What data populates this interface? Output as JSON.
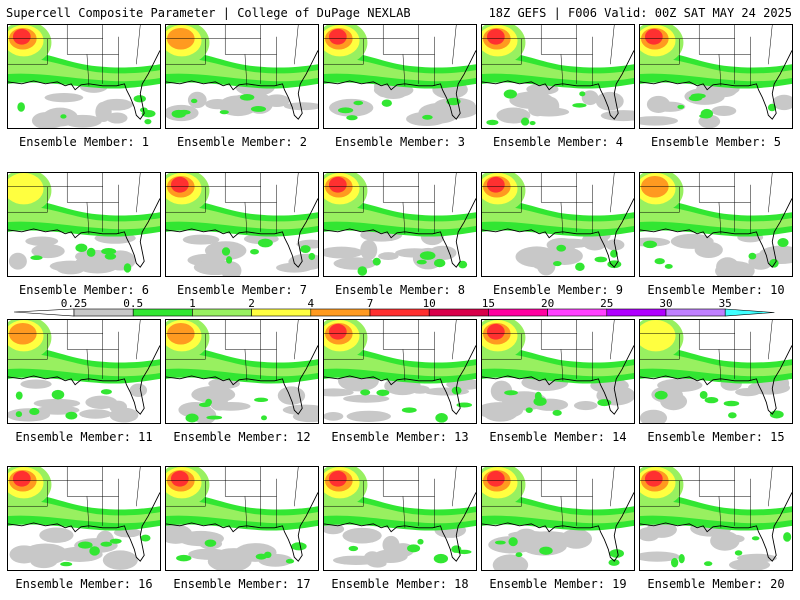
{
  "header": {
    "left": "Supercell Composite Parameter | College of DuPage NEXLAB",
    "right": "18Z GEFS | F006 Valid: 00Z SAT MAY 24 2025"
  },
  "panels": [
    {
      "label": "Ensemble Member: 1",
      "max_level": "10"
    },
    {
      "label": "Ensemble Member: 2",
      "max_level": "7"
    },
    {
      "label": "Ensemble Member: 3",
      "max_level": "10"
    },
    {
      "label": "Ensemble Member: 4",
      "max_level": "10"
    },
    {
      "label": "Ensemble Member: 5",
      "max_level": "10"
    },
    {
      "label": "Ensemble Member: 6",
      "max_level": "4"
    },
    {
      "label": "Ensemble Member: 7",
      "max_level": "10"
    },
    {
      "label": "Ensemble Member: 8",
      "max_level": "10"
    },
    {
      "label": "Ensemble Member: 9",
      "max_level": "10"
    },
    {
      "label": "Ensemble Member: 10",
      "max_level": "7"
    },
    {
      "label": "Ensemble Member: 11",
      "max_level": "7"
    },
    {
      "label": "Ensemble Member: 12",
      "max_level": "7"
    },
    {
      "label": "Ensemble Member: 13",
      "max_level": "10"
    },
    {
      "label": "Ensemble Member: 14",
      "max_level": "10"
    },
    {
      "label": "Ensemble Member: 15",
      "max_level": "4"
    },
    {
      "label": "Ensemble Member: 16",
      "max_level": "10"
    },
    {
      "label": "Ensemble Member: 17",
      "max_level": "10"
    },
    {
      "label": "Ensemble Member: 18",
      "max_level": "10"
    },
    {
      "label": "Ensemble Member: 19",
      "max_level": "10"
    },
    {
      "label": "Ensemble Member: 20",
      "max_level": "10"
    }
  ],
  "colorbar": {
    "labels": [
      "0.25",
      "0.5",
      "1",
      "2",
      "4",
      "7",
      "10",
      "15",
      "20",
      "25",
      "30",
      "35"
    ],
    "colors": [
      "#c8c8c8",
      "#32e632",
      "#98f060",
      "#ffff40",
      "#ff9a20",
      "#ff3030",
      "#d8004a",
      "#ff00a0",
      "#ff40ff",
      "#b000ff",
      "#c080ff",
      "#40ffff"
    ]
  }
}
